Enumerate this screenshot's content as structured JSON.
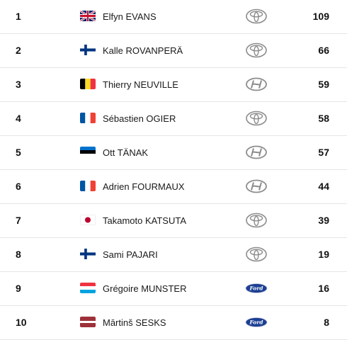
{
  "standings": [
    {
      "position": "1",
      "driver": "Elfyn EVANS",
      "flag": "united-kingdom-flag",
      "manufacturer": "toyota-logo-icon",
      "points": "109"
    },
    {
      "position": "2",
      "driver": "Kalle ROVANPERÄ",
      "flag": "finland-flag",
      "manufacturer": "toyota-logo-icon",
      "points": "66"
    },
    {
      "position": "3",
      "driver": "Thierry NEUVILLE",
      "flag": "belgium-flag",
      "manufacturer": "hyundai-logo-icon",
      "points": "59"
    },
    {
      "position": "4",
      "driver": "Sébastien OGIER",
      "flag": "france-flag",
      "manufacturer": "toyota-logo-icon",
      "points": "58"
    },
    {
      "position": "5",
      "driver": "Ott TÄNAK",
      "flag": "estonia-flag",
      "manufacturer": "hyundai-logo-icon",
      "points": "57"
    },
    {
      "position": "6",
      "driver": "Adrien FOURMAUX",
      "flag": "france-flag",
      "manufacturer": "hyundai-logo-icon",
      "points": "44"
    },
    {
      "position": "7",
      "driver": "Takamoto KATSUTA",
      "flag": "japan-flag",
      "manufacturer": "toyota-logo-icon",
      "points": "39"
    },
    {
      "position": "8",
      "driver": "Sami PAJARI",
      "flag": "finland-flag",
      "manufacturer": "toyota-logo-icon",
      "points": "19"
    },
    {
      "position": "9",
      "driver": "Grégoire MUNSTER",
      "flag": "luxembourg-flag",
      "manufacturer": "ford-logo-icon",
      "points": "16"
    },
    {
      "position": "10",
      "driver": "Mārtinš SESKS",
      "flag": "latvia-flag",
      "manufacturer": "ford-logo-icon",
      "points": "8"
    }
  ],
  "colors": {
    "ford_blue": "#1c3f94",
    "logo_grey": "#8c8c8c",
    "divider": "#e6e6e6"
  }
}
